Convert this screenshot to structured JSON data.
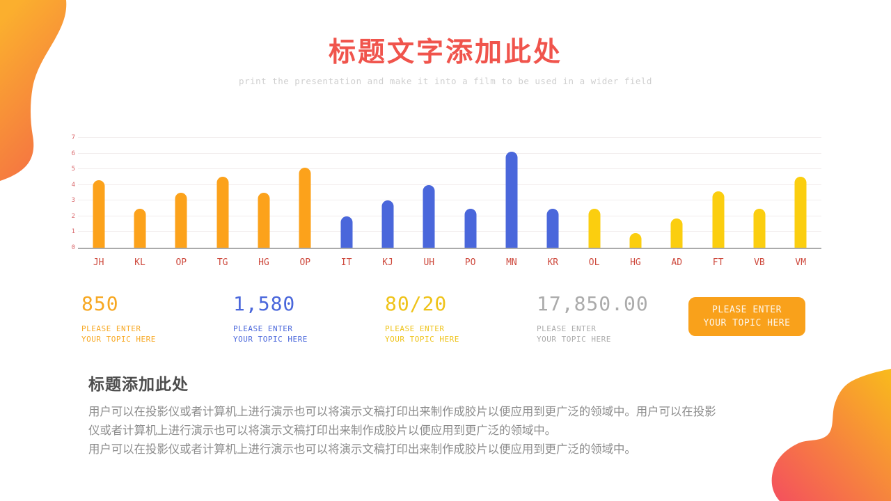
{
  "header": {
    "title": "标题文字添加此处",
    "subtitle": "print the presentation and make it into a film to be used in a wider field"
  },
  "chart_data": {
    "type": "bar",
    "categories": [
      "JH",
      "KL",
      "OP",
      "TG",
      "HG",
      "OP",
      "IT",
      "KJ",
      "UH",
      "PO",
      "MN",
      "KR",
      "OL",
      "HG",
      "AD",
      "FT",
      "VB",
      "VM"
    ],
    "values": [
      4.3,
      2.5,
      3.5,
      4.5,
      3.5,
      5.1,
      2.0,
      3.0,
      4.0,
      2.5,
      6.1,
      2.5,
      2.5,
      0.95,
      1.85,
      3.6,
      2.5,
      4.5
    ],
    "bar_colors": [
      "#FCA21B",
      "#FCA21B",
      "#FCA21B",
      "#FCA21B",
      "#FCA21B",
      "#FCA21B",
      "#4A67DB",
      "#4A67DB",
      "#4A67DB",
      "#4A67DB",
      "#4A67DB",
      "#4A67DB",
      "#FBCE0F",
      "#FBCE0F",
      "#FBCE0F",
      "#FBCE0F",
      "#FBCE0F",
      "#FBCE0F"
    ],
    "title": "",
    "xlabel": "",
    "ylabel": "",
    "ylim": [
      0,
      7
    ],
    "yticks": [
      0,
      1,
      2,
      3,
      4,
      5,
      6,
      7
    ],
    "grid": "on",
    "legend": "none",
    "axis_label_color": "#CE4A3E",
    "ytick_color": "#D9666A"
  },
  "stats": [
    {
      "value": "850",
      "label": "PLEASE ENTER\nYOUR TOPIC HERE",
      "color": "#F7A823"
    },
    {
      "value": "1,580",
      "label": "PLEASE ENTER\nYOUR TOPIC HERE",
      "color": "#4A67DB"
    },
    {
      "value": "80/20",
      "label": "PLEASE ENTER\nYOUR TOPIC HERE",
      "color": "#EFC31A"
    },
    {
      "value": "17,850.00",
      "label": "PLEASE ENTER\nYOUR TOPIC HERE",
      "color": "#ABABAB"
    }
  ],
  "button": {
    "label": "PLEASE ENTER\nYOUR TOPIC HERE",
    "color": "#F9A11B"
  },
  "section": {
    "heading": "标题添加此处",
    "paragraph1": "用户可以在投影仪或者计算机上进行演示也可以将演示文稿打印出来制作成胶片以便应用到更广泛的领域中。用户可以在投影仪或者计算机上进行演示也可以将演示文稿打印出来制作成胶片以便应用到更广泛的领域中。",
    "paragraph2": "用户可以在投影仪或者计算机上进行演示也可以将演示文稿打印出来制作成胶片以便应用到更广泛的领域中。"
  },
  "decor": {
    "blob_top_left_gradient": [
      "#FBAF2E",
      "#F46E44"
    ],
    "blob_bottom_right_gradient": [
      "#F9BB1C",
      "#F44F5E"
    ]
  }
}
